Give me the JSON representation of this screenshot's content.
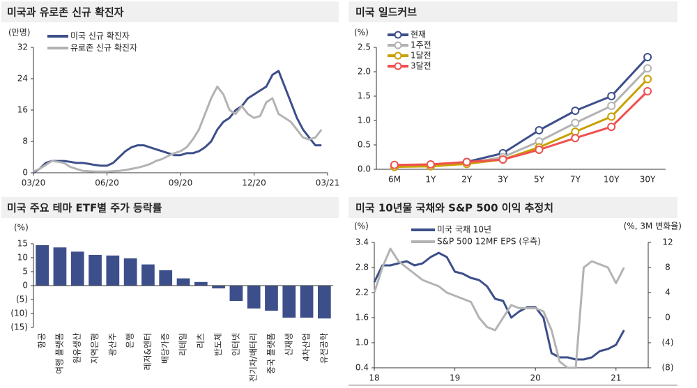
{
  "chart_data": [
    {
      "type": "line",
      "title": "미국과 유로존 신규 확진자",
      "y_label": "(만명)",
      "x": [
        0,
        0.25,
        0.5,
        0.75,
        1,
        1.25,
        1.5,
        1.75,
        2,
        2.25,
        2.5,
        2.75,
        3,
        3.25,
        3.5,
        3.75,
        4,
        4.25,
        4.5,
        4.75,
        5,
        5.25,
        5.5,
        5.75,
        6,
        6.25,
        6.5,
        6.75,
        7,
        7.25,
        7.5,
        7.75,
        8,
        8.25,
        8.5,
        8.75,
        9,
        9.25,
        9.5,
        9.75,
        10,
        10.25,
        10.5,
        10.75,
        11,
        11.25,
        11.5,
        11.75
      ],
      "xlim": [
        0,
        12
      ],
      "xticks": [
        {
          "value": 0,
          "label": "03/20"
        },
        {
          "value": 3,
          "label": "06/20"
        },
        {
          "value": 6,
          "label": "09/20"
        },
        {
          "value": 9,
          "label": "12/20"
        },
        {
          "value": 12,
          "label": "03/21"
        }
      ],
      "ylim": [
        0,
        32
      ],
      "yticks": [
        0,
        8,
        16,
        24,
        32
      ],
      "series": [
        {
          "name": "미국 신규 확진자",
          "color": "#3d4f8a",
          "values": [
            0,
            1,
            2.5,
            3,
            3,
            3,
            2.8,
            2.5,
            2.5,
            2.3,
            2,
            1.8,
            1.8,
            2.5,
            4,
            5.5,
            6.5,
            7,
            7,
            6.5,
            6,
            5.5,
            5,
            4.5,
            4.5,
            5,
            5,
            5.5,
            6.5,
            8,
            11,
            13,
            14,
            16,
            17,
            19,
            20,
            21,
            22,
            25,
            26,
            22,
            18,
            14,
            11,
            9,
            7,
            7
          ]
        },
        {
          "name": "유로존 신규 확진자",
          "color": "#b3b3b3",
          "values": [
            0.3,
            1,
            2,
            3,
            2.8,
            2.5,
            1.5,
            1,
            0.5,
            0.4,
            0.3,
            0.3,
            0.3,
            0.4,
            0.5,
            0.7,
            1,
            1.3,
            1.7,
            2.2,
            3,
            3.5,
            4.3,
            5,
            5.5,
            6.5,
            8.5,
            11,
            15,
            19,
            22,
            20,
            16,
            15,
            17,
            15,
            14,
            14.5,
            18,
            19,
            15,
            14,
            13,
            11,
            9,
            8.5,
            9,
            11
          ]
        }
      ]
    },
    {
      "type": "line",
      "title": "미국 일드커브",
      "y_label": "(%)",
      "markers": true,
      "categories": [
        "6M",
        "1Y",
        "2Y",
        "3Y",
        "5Y",
        "7Y",
        "10Y",
        "30Y"
      ],
      "ylim": [
        0,
        2.5
      ],
      "yticks": [
        {
          "value": 0,
          "label": "0.0"
        },
        0.5,
        {
          "value": 1,
          "label": "1.0"
        },
        1.5,
        {
          "value": 2,
          "label": "2.0"
        },
        2.5
      ],
      "series": [
        {
          "name": "현재",
          "color": "#3d4f8a",
          "values": [
            0.05,
            0.08,
            0.15,
            0.33,
            0.8,
            1.2,
            1.5,
            2.3
          ]
        },
        {
          "name": "1주전",
          "color": "#b3b3b3",
          "values": [
            0.05,
            0.07,
            0.12,
            0.25,
            0.57,
            0.95,
            1.3,
            2.07
          ]
        },
        {
          "name": "1달전",
          "color": "#c9a000",
          "values": [
            0.05,
            0.06,
            0.11,
            0.2,
            0.45,
            0.77,
            1.08,
            1.85
          ]
        },
        {
          "name": "3달전",
          "color": "#f05050",
          "values": [
            0.09,
            0.1,
            0.15,
            0.2,
            0.4,
            0.64,
            0.87,
            1.6
          ]
        }
      ]
    },
    {
      "type": "bar",
      "title": "미국 주요 테마 ETF별 주가 등락률",
      "y_label": "(%)",
      "color": "#3d4f8a",
      "categories": [
        "항공",
        "여행 플랫폼",
        "원유생산",
        "지역은행",
        "광산주",
        "은행",
        "레저&엔터",
        "배당가증",
        "리테일",
        "리츠",
        "반도체",
        "인터넷",
        "전기차/배터리",
        "중국 플랫폼",
        "신재생",
        "4차산업",
        "유전공학"
      ],
      "values": [
        14.5,
        13.7,
        12.2,
        11,
        10.8,
        9.8,
        7.6,
        5.5,
        2.6,
        1.3,
        -1,
        -5.5,
        -8.2,
        -9,
        -11.5,
        -11.5,
        -11.8
      ],
      "ylim": [
        -15,
        15
      ],
      "yticks": [
        15,
        10,
        5,
        0,
        {
          "value": -5,
          "label": "(5)"
        },
        {
          "value": -10,
          "label": "(10)"
        },
        {
          "value": -15,
          "label": "(15)"
        }
      ]
    },
    {
      "type": "line",
      "title": "미국 10년물 국채와 S&P 500 이익 추정치",
      "y_label": "(%)",
      "y2_label": "(%, 3M 변화율)",
      "x": [
        18,
        18.1,
        18.2,
        18.3,
        18.4,
        18.5,
        18.6,
        18.7,
        18.8,
        18.9,
        19,
        19.1,
        19.2,
        19.3,
        19.4,
        19.5,
        19.6,
        19.7,
        19.8,
        19.9,
        20,
        20.1,
        20.2,
        20.3,
        20.4,
        20.5,
        20.6,
        20.7,
        20.8,
        20.9,
        21,
        21.1
      ],
      "xlim": [
        18,
        21.4
      ],
      "xticks": [
        18,
        19,
        20,
        21
      ],
      "ylim": [
        0.4,
        3.4
      ],
      "yticks": [
        0.4,
        {
          "value": 1,
          "label": "1.0"
        },
        1.6,
        2.2,
        2.8,
        3.4
      ],
      "y2lim": [
        -8,
        12
      ],
      "y2ticks": [
        {
          "value": -8,
          "label": "(8)"
        },
        {
          "value": -4,
          "label": "(4)"
        },
        0,
        4,
        8,
        12
      ],
      "series": [
        {
          "name": "미국 국채 10년",
          "color": "#3d4f8a",
          "values": [
            2.45,
            2.85,
            2.85,
            2.9,
            2.95,
            2.85,
            2.9,
            3.05,
            3.15,
            3.05,
            2.7,
            2.65,
            2.55,
            2.5,
            2.35,
            2.05,
            2,
            1.6,
            1.75,
            1.85,
            1.85,
            1.6,
            0.75,
            0.65,
            0.65,
            0.6,
            0.6,
            0.65,
            0.8,
            0.85,
            0.95,
            1.3
          ]
        },
        {
          "name": "S&P 500 12MF EPS (우측)",
          "color": "#b3b3b3",
          "axis": "y2",
          "values": [
            4,
            8,
            11,
            9,
            8,
            7,
            6,
            5.5,
            5,
            4,
            3.5,
            3,
            2.5,
            0,
            -1.5,
            -2,
            0,
            2,
            1.5,
            1.5,
            1.5,
            1,
            -2,
            -7,
            -8,
            -8,
            8,
            9,
            8.5,
            8,
            5.5,
            8
          ]
        }
      ]
    }
  ]
}
